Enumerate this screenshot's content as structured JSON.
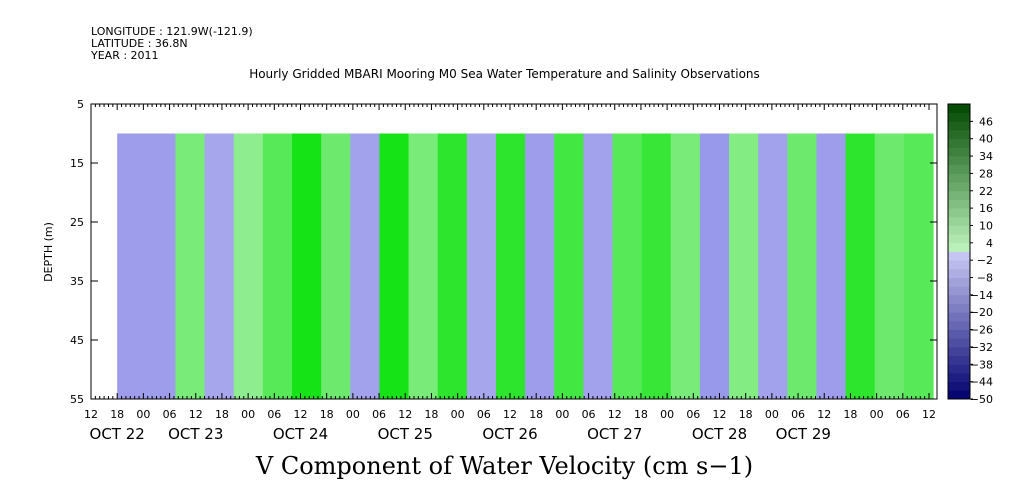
{
  "header": {
    "longitude": "LONGITUDE : 121.9W(-121.9)",
    "latitude": "LATITUDE : 36.8N",
    "year": "YEAR : 2011"
  },
  "chart_data": {
    "type": "heatmap",
    "title": "Hourly Gridded MBARI Mooring M0 Sea Water Temperature and Salinity Observations",
    "main_label": "V Component of Water Velocity (cm s−1)",
    "ylabel": "DEPTH (m)",
    "ylim": [
      55,
      5
    ],
    "y_ticks": [
      "5",
      "15",
      "25",
      "35",
      "45",
      "55"
    ],
    "x_hour_ticks": [
      "12",
      "18",
      "00",
      "06",
      "12",
      "18",
      "00",
      "06",
      "12",
      "18",
      "00",
      "06",
      "12",
      "18",
      "00",
      "06",
      "12",
      "18",
      "00",
      "06",
      "12",
      "18",
      "00",
      "06",
      "12",
      "18",
      "00",
      "06",
      "12",
      "18",
      "00",
      "06",
      "12"
    ],
    "x_date_labels": [
      "OCT 22",
      "OCT 23",
      "OCT 24",
      "OCT 25",
      "OCT 26",
      "OCT 27",
      "OCT 28",
      "OCT 29"
    ],
    "data_depth_range": [
      10,
      55
    ],
    "colorbar_labels": [
      "46",
      "40",
      "34",
      "28",
      "22",
      "16",
      "10",
      "4",
      "−2",
      "−8",
      "−14",
      "−20",
      "−26",
      "−32",
      "−38",
      "−44",
      "−50"
    ],
    "colorbar_range": [
      -50,
      52
    ],
    "colorbar_step": 3,
    "columns": [
      {
        "t": "OCT 22 18",
        "v": -6
      },
      {
        "t": "OCT 23 00",
        "v": -6
      },
      {
        "t": "OCT 23 06",
        "v": 5
      },
      {
        "t": "OCT 23 12",
        "v": -4
      },
      {
        "t": "OCT 23 18",
        "v": 3
      },
      {
        "t": "OCT 24 00",
        "v": 8
      },
      {
        "t": "OCT 24 06",
        "v": 14
      },
      {
        "t": "OCT 24 12",
        "v": 6
      },
      {
        "t": "OCT 24 18",
        "v": -5
      },
      {
        "t": "OCT 25 00",
        "v": 14
      },
      {
        "t": "OCT 25 06",
        "v": 5
      },
      {
        "t": "OCT 25 12",
        "v": 12
      },
      {
        "t": "OCT 25 18",
        "v": -4
      },
      {
        "t": "OCT 26 00",
        "v": 12
      },
      {
        "t": "OCT 26 06",
        "v": -6
      },
      {
        "t": "OCT 26 12",
        "v": 10
      },
      {
        "t": "OCT 26 18",
        "v": -5
      },
      {
        "t": "OCT 27 00",
        "v": 8
      },
      {
        "t": "OCT 27 06",
        "v": 11
      },
      {
        "t": "OCT 27 12",
        "v": 5
      },
      {
        "t": "OCT 27 18",
        "v": -7
      },
      {
        "t": "OCT 28 00",
        "v": 4
      },
      {
        "t": "OCT 28 06",
        "v": -5
      },
      {
        "t": "OCT 28 12",
        "v": 6
      },
      {
        "t": "OCT 28 18",
        "v": -6
      },
      {
        "t": "OCT 29 00",
        "v": 12
      },
      {
        "t": "OCT 29 06",
        "v": 6
      },
      {
        "t": "OCT 29 12",
        "v": 8
      }
    ]
  }
}
